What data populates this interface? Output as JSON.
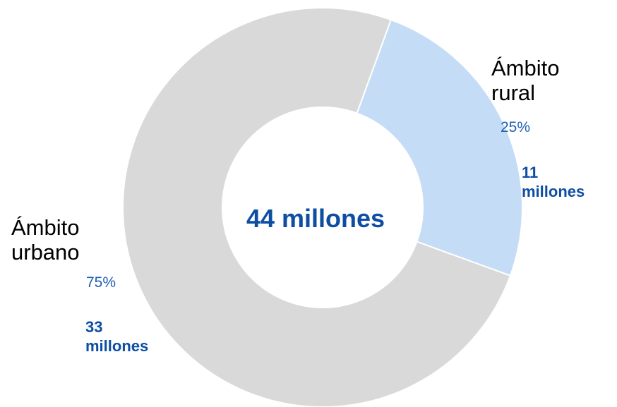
{
  "chart_data": {
    "type": "pie",
    "total_label": "44 millones",
    "slices": [
      {
        "name_line1": "Ámbito",
        "name_line2": "rural",
        "percent_label": "25%",
        "amount_line1": "11",
        "amount_line2": "millones",
        "value": 25,
        "color": "#c5dcf6"
      },
      {
        "name_line1": "Ámbito",
        "name_line2": "urbano",
        "percent_label": "75%",
        "amount_line1": "33",
        "amount_line2": "millones",
        "value": 75,
        "color": "#d9d9d9"
      }
    ],
    "start_angle_deg": 20
  }
}
